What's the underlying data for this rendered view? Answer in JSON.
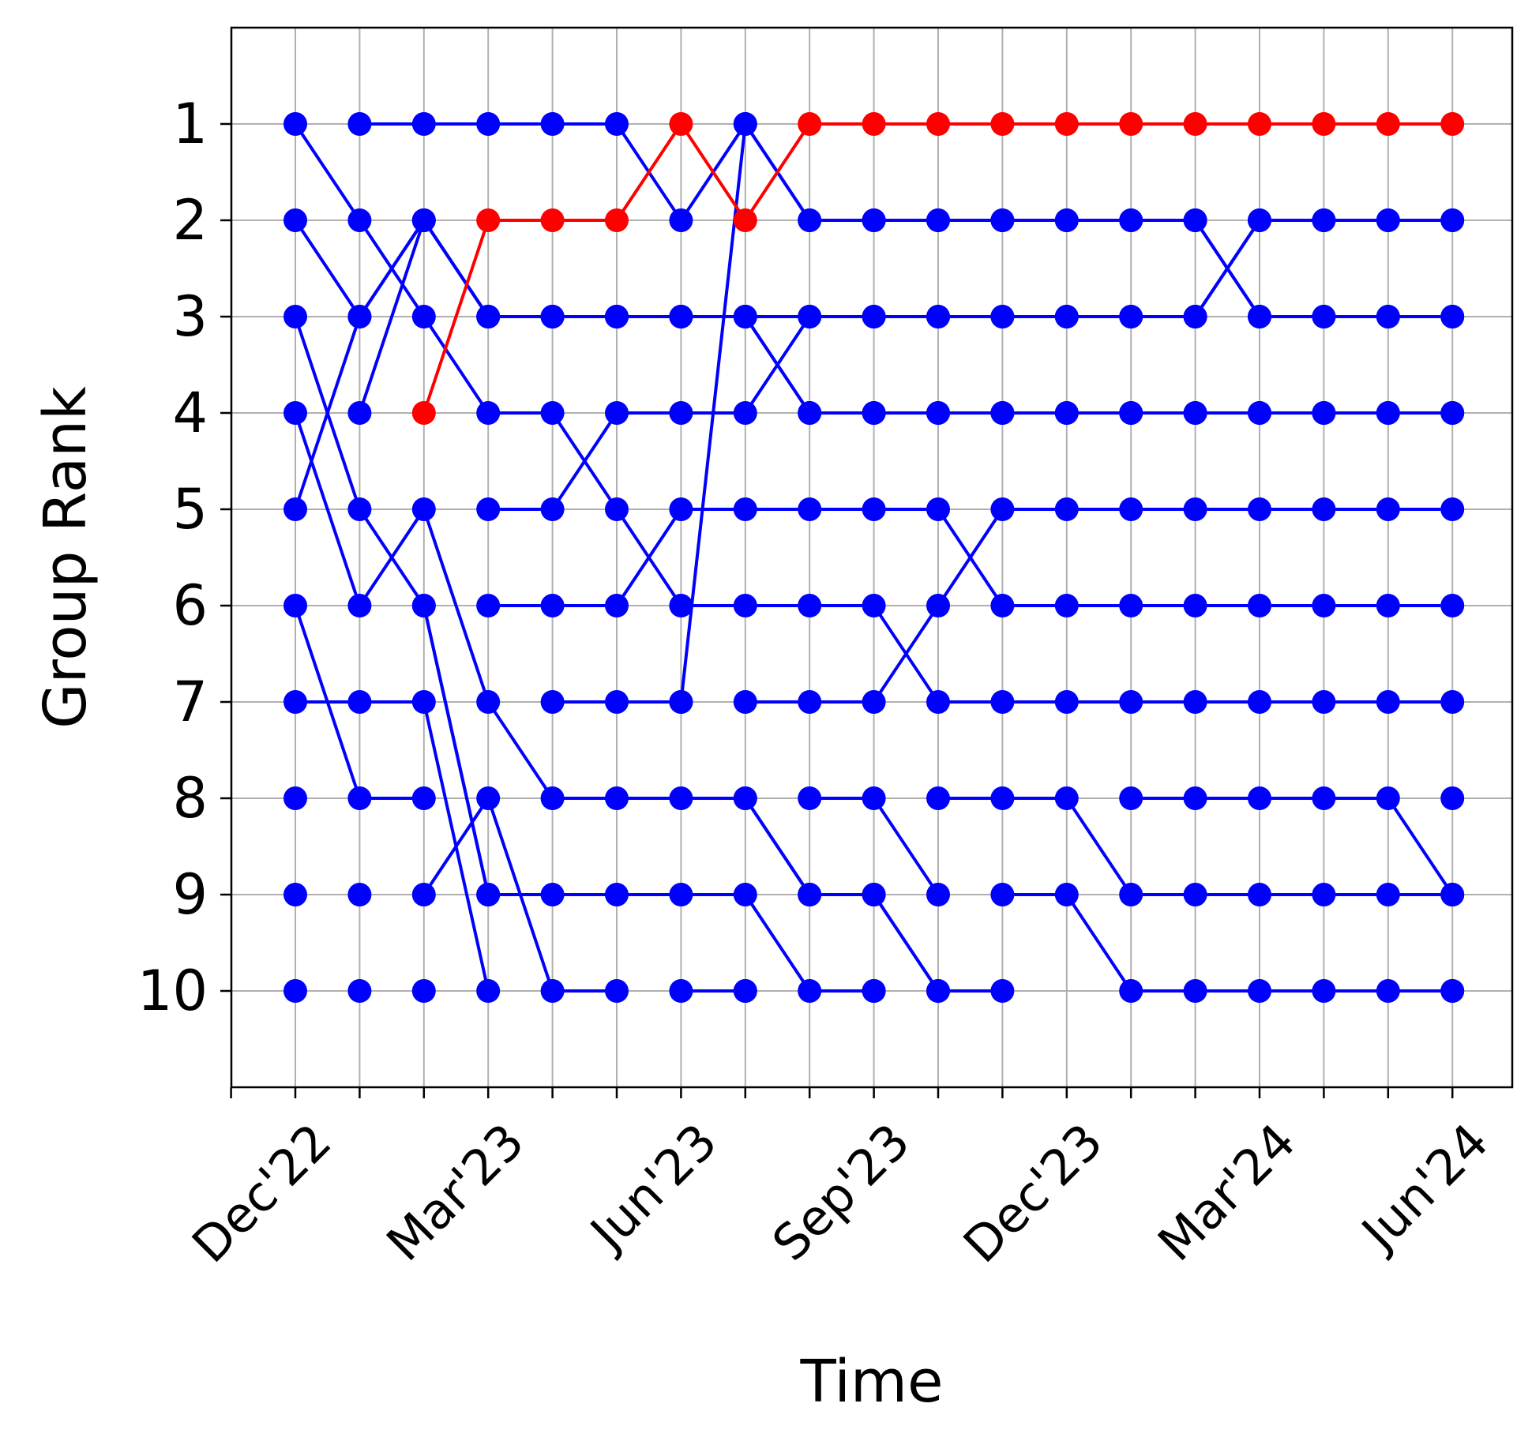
{
  "chart_data": {
    "type": "line",
    "xlabel": "Time",
    "ylabel": "Group Rank",
    "x_periods": [
      "Dec'22",
      "Jan'23",
      "Feb'23",
      "Mar'23",
      "Apr'23",
      "May'23",
      "Jun'23",
      "Jul'23",
      "Aug'23",
      "Sep'23",
      "Oct'23",
      "Nov'23",
      "Dec'23",
      "Jan'24",
      "Feb'24",
      "Mar'24",
      "Apr'24",
      "May'24",
      "Jun'24"
    ],
    "x_tick_labels": [
      "Dec'22",
      "Mar'23",
      "Jun'23",
      "Sep'23",
      "Dec'23",
      "Mar'24",
      "Jun'24"
    ],
    "x_tick_label_periods": [
      "Dec'22",
      "Mar'23",
      "Jun'23",
      "Sep'23",
      "Dec'23",
      "Mar'24",
      "Jun'24"
    ],
    "y_tick_labels": [
      "1",
      "2",
      "3",
      "4",
      "5",
      "6",
      "7",
      "8",
      "9",
      "10"
    ],
    "ylim": [
      11,
      0
    ],
    "y_inverted": true,
    "grid": true,
    "highlight_color": "#ff0000",
    "default_color": "#0000ff",
    "series": [
      {
        "color": "#ff0000",
        "ranks": [
          null,
          null,
          4,
          2,
          2,
          2,
          1,
          2,
          1,
          1,
          1,
          1,
          1,
          1,
          1,
          1,
          1,
          1,
          1
        ]
      },
      {
        "color": "#0000ff",
        "ranks": [
          1,
          2,
          3,
          4,
          4,
          5,
          6,
          6,
          6,
          6,
          7,
          7,
          7,
          7,
          7,
          7,
          7,
          7,
          7
        ]
      },
      {
        "color": "#0000ff",
        "ranks": [
          null,
          1,
          1,
          1,
          1,
          1,
          2,
          1,
          2,
          2,
          2,
          2,
          2,
          2,
          2,
          3,
          3,
          3,
          3
        ]
      },
      {
        "color": "#0000ff",
        "ranks": [
          2,
          3,
          2,
          3,
          3,
          3,
          3,
          3,
          4,
          4,
          4,
          4,
          4,
          4,
          4,
          4,
          4,
          4,
          4
        ]
      },
      {
        "color": "#0000ff",
        "ranks": [
          5,
          3,
          2,
          3,
          3,
          3,
          3,
          3,
          4,
          4,
          4,
          4,
          4,
          4,
          4,
          4,
          4,
          4,
          4
        ]
      },
      {
        "color": "#0000ff",
        "ranks": [
          3,
          5,
          6,
          9,
          9,
          9,
          9,
          9,
          10,
          10,
          null,
          null,
          null,
          null,
          null,
          null,
          null,
          null,
          null
        ]
      },
      {
        "color": "#0000ff",
        "ranks": [
          4,
          6,
          5,
          7,
          8,
          8,
          8,
          8,
          9,
          9,
          10,
          10,
          null,
          null,
          null,
          null,
          null,
          null,
          null
        ]
      },
      {
        "color": "#0000ff",
        "ranks": [
          null,
          4,
          2,
          3,
          3,
          3,
          3,
          3,
          3,
          3,
          3,
          3,
          3,
          3,
          3,
          2,
          2,
          2,
          2
        ]
      },
      {
        "color": "#0000ff",
        "ranks": [
          6,
          8,
          8,
          null,
          null,
          null,
          null,
          null,
          null,
          null,
          null,
          null,
          null,
          null,
          null,
          null,
          null,
          null,
          null
        ]
      },
      {
        "color": "#0000ff",
        "ranks": [
          7,
          7,
          7,
          10,
          null,
          null,
          null,
          null,
          null,
          null,
          null,
          null,
          null,
          null,
          null,
          null,
          null,
          null,
          null
        ]
      },
      {
        "color": "#0000ff",
        "ranks": [
          null,
          null,
          9,
          8,
          10,
          10,
          null,
          null,
          null,
          null,
          null,
          null,
          null,
          null,
          null,
          null,
          null,
          null,
          null
        ]
      },
      {
        "color": "#0000ff",
        "ranks": [
          null,
          null,
          6,
          9,
          null,
          null,
          null,
          null,
          null,
          null,
          null,
          null,
          null,
          null,
          null,
          null,
          null,
          null,
          null
        ]
      },
      {
        "color": "#0000ff",
        "ranks": [
          null,
          null,
          null,
          5,
          5,
          4,
          4,
          4,
          3,
          3,
          3,
          3,
          3,
          3,
          3,
          2,
          2,
          2,
          2
        ]
      },
      {
        "color": "#0000ff",
        "ranks": [
          null,
          null,
          null,
          6,
          6,
          6,
          5,
          5,
          5,
          5,
          5,
          6,
          6,
          6,
          6,
          6,
          6,
          6,
          6
        ]
      },
      {
        "color": "#0000ff",
        "ranks": [
          null,
          null,
          null,
          null,
          7,
          7,
          7,
          1,
          2,
          2,
          2,
          2,
          2,
          2,
          2,
          3,
          3,
          3,
          3
        ]
      },
      {
        "color": "#0000ff",
        "ranks": [
          null,
          null,
          null,
          null,
          null,
          null,
          null,
          7,
          7,
          7,
          6,
          5,
          5,
          5,
          5,
          5,
          5,
          5,
          5
        ]
      },
      {
        "color": "#0000ff",
        "ranks": [
          null,
          null,
          null,
          null,
          null,
          null,
          10,
          10,
          null,
          null,
          null,
          null,
          null,
          null,
          null,
          null,
          null,
          null,
          null
        ]
      },
      {
        "color": "#0000ff",
        "ranks": [
          null,
          null,
          null,
          null,
          null,
          null,
          null,
          8,
          9,
          9,
          10,
          null,
          null,
          null,
          null,
          null,
          null,
          null,
          null
        ]
      },
      {
        "color": "#0000ff",
        "ranks": [
          null,
          null,
          null,
          null,
          null,
          null,
          null,
          null,
          8,
          8,
          9,
          null,
          null,
          null,
          null,
          null,
          null,
          null,
          null
        ]
      },
      {
        "color": "#0000ff",
        "ranks": [
          null,
          null,
          null,
          null,
          null,
          null,
          null,
          null,
          null,
          null,
          8,
          8,
          8,
          9,
          9,
          9,
          9,
          9,
          9
        ]
      },
      {
        "color": "#0000ff",
        "ranks": [
          null,
          null,
          null,
          null,
          null,
          null,
          null,
          null,
          null,
          null,
          null,
          9,
          9,
          10,
          10,
          10,
          10,
          10,
          10
        ]
      },
      {
        "color": "#0000ff",
        "ranks": [
          null,
          null,
          null,
          null,
          null,
          null,
          null,
          null,
          null,
          null,
          null,
          null,
          null,
          8,
          8,
          8,
          8,
          8,
          9
        ]
      }
    ],
    "extra_points": [
      {
        "period": "Dec'22",
        "rank": 8
      },
      {
        "period": "Dec'22",
        "rank": 9
      },
      {
        "period": "Dec'22",
        "rank": 10
      },
      {
        "period": "Jan'23",
        "rank": 9
      },
      {
        "period": "Jan'23",
        "rank": 10
      },
      {
        "period": "Feb'23",
        "rank": 10
      },
      {
        "period": "Jul'23",
        "rank": 10
      },
      {
        "period": "Jun'23",
        "rank": 7
      },
      {
        "period": "Sep'23",
        "rank": 10
      },
      {
        "period": "Jun'24",
        "rank": 8
      },
      {
        "period": "Jun'24",
        "rank": 10
      }
    ]
  }
}
